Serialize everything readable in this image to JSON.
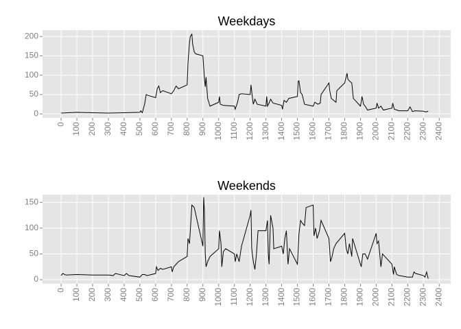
{
  "chart_data": [
    {
      "type": "line",
      "title": "Weekdays",
      "color": "#000000",
      "grid": true,
      "x": [
        0,
        100,
        200,
        300,
        400,
        500,
        505,
        515,
        530,
        540,
        550,
        600,
        610,
        620,
        630,
        645,
        700,
        715,
        730,
        745,
        800,
        805,
        815,
        820,
        830,
        835,
        845,
        855,
        900,
        910,
        915,
        920,
        930,
        945,
        1000,
        1005,
        1010,
        1030,
        1100,
        1105,
        1120,
        1130,
        1145,
        1200,
        1205,
        1215,
        1220,
        1230,
        1245,
        1300,
        1305,
        1310,
        1320,
        1330,
        1345,
        1400,
        1405,
        1415,
        1430,
        1445,
        1500,
        1505,
        1510,
        1520,
        1530,
        1545,
        1600,
        1610,
        1630,
        1645,
        1650,
        1700,
        1705,
        1715,
        1730,
        1745,
        1750,
        1800,
        1815,
        1820,
        1830,
        1845,
        1855,
        1900,
        1910,
        1920,
        1930,
        1945,
        2000,
        2005,
        2015,
        2030,
        2045,
        2100,
        2105,
        2115,
        2130,
        2145,
        2200,
        2210,
        2215,
        2230,
        2245,
        2300,
        2315,
        2330
      ],
      "values": [
        2,
        4,
        3,
        2,
        3,
        4,
        8,
        3,
        25,
        50,
        48,
        42,
        65,
        72,
        55,
        60,
        52,
        60,
        72,
        65,
        75,
        130,
        185,
        200,
        206,
        180,
        160,
        155,
        150,
        90,
        70,
        95,
        40,
        20,
        30,
        45,
        25,
        22,
        20,
        12,
        30,
        50,
        52,
        50,
        75,
        40,
        25,
        38,
        25,
        20,
        45,
        20,
        28,
        38,
        28,
        22,
        12,
        35,
        30,
        40,
        45,
        85,
        85,
        55,
        50,
        25,
        20,
        30,
        25,
        28,
        50,
        80,
        60,
        40,
        35,
        30,
        60,
        80,
        105,
        90,
        85,
        80,
        40,
        20,
        45,
        25,
        20,
        10,
        15,
        28,
        15,
        20,
        10,
        15,
        28,
        12,
        10,
        8,
        8,
        15,
        18,
        6,
        8,
        7,
        5,
        7
      ],
      "xlim": [
        -118,
        2473
      ],
      "ylim": [
        -10.3,
        216.3
      ],
      "xticks": [
        0,
        100,
        200,
        300,
        400,
        500,
        600,
        700,
        800,
        900,
        1000,
        1100,
        1200,
        1300,
        1400,
        1500,
        1600,
        1700,
        1800,
        1900,
        2000,
        2100,
        2200,
        2300,
        2400
      ],
      "yticks": [
        0,
        50,
        100,
        150,
        200
      ]
    },
    {
      "type": "line",
      "title": "Weekends",
      "color": "#000000",
      "grid": true,
      "x": [
        0,
        10,
        30,
        100,
        200,
        300,
        330,
        345,
        400,
        415,
        430,
        500,
        515,
        530,
        545,
        600,
        605,
        615,
        630,
        645,
        700,
        705,
        715,
        730,
        745,
        800,
        805,
        815,
        830,
        845,
        900,
        905,
        910,
        915,
        920,
        930,
        945,
        1000,
        1005,
        1015,
        1020,
        1030,
        1045,
        1100,
        1105,
        1115,
        1130,
        1145,
        1200,
        1205,
        1210,
        1220,
        1230,
        1240,
        1250,
        1300,
        1310,
        1315,
        1320,
        1330,
        1345,
        1350,
        1400,
        1410,
        1420,
        1430,
        1440,
        1450,
        1500,
        1510,
        1520,
        1530,
        1545,
        1555,
        1600,
        1605,
        1615,
        1625,
        1640,
        1650,
        1700,
        1710,
        1720,
        1730,
        1745,
        1800,
        1810,
        1820,
        1830,
        1845,
        1850,
        1900,
        1905,
        1915,
        1930,
        1945,
        2000,
        2005,
        2015,
        2030,
        2040,
        2100,
        2105,
        2110,
        2115,
        2130,
        2145,
        2200,
        2230,
        2240,
        2250,
        2300,
        2310,
        2320,
        2330
      ],
      "values": [
        8,
        12,
        9,
        10,
        9,
        9,
        8,
        12,
        8,
        12,
        8,
        5,
        10,
        10,
        8,
        12,
        25,
        18,
        22,
        20,
        25,
        15,
        25,
        30,
        35,
        45,
        80,
        70,
        145,
        140,
        65,
        160,
        130,
        50,
        25,
        35,
        45,
        60,
        95,
        70,
        25,
        55,
        60,
        50,
        35,
        50,
        35,
        65,
        125,
        135,
        60,
        35,
        20,
        50,
        95,
        95,
        115,
        50,
        30,
        125,
        100,
        60,
        65,
        50,
        80,
        95,
        30,
        60,
        30,
        90,
        115,
        110,
        105,
        140,
        145,
        85,
        100,
        80,
        95,
        115,
        80,
        35,
        45,
        60,
        70,
        90,
        60,
        50,
        70,
        45,
        80,
        30,
        25,
        50,
        50,
        40,
        90,
        70,
        75,
        25,
        50,
        30,
        20,
        10,
        25,
        10,
        8,
        5,
        5,
        15,
        12,
        8,
        5,
        15,
        2
      ],
      "xlim": [
        -118,
        2473
      ],
      "ylim": [
        -7.9,
        165
      ],
      "xticks": [
        0,
        100,
        200,
        300,
        400,
        500,
        600,
        700,
        800,
        900,
        1000,
        1100,
        1200,
        1300,
        1400,
        1500,
        1600,
        1700,
        1800,
        1900,
        2000,
        2100,
        2200,
        2300,
        2400
      ],
      "yticks": [
        0,
        50,
        100,
        150
      ]
    }
  ]
}
